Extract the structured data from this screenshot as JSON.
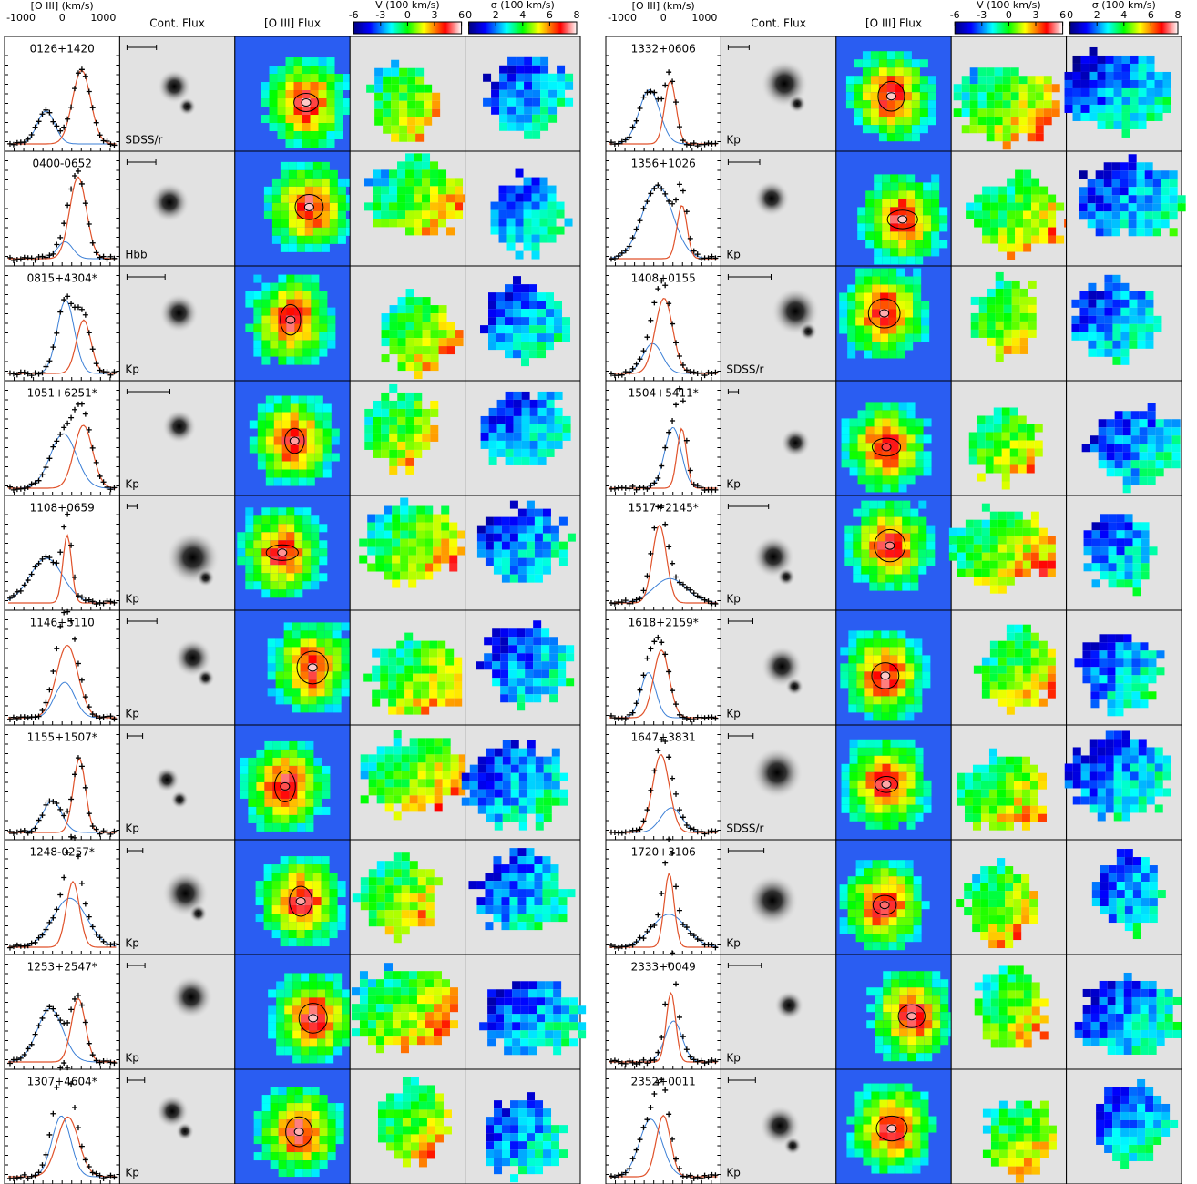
{
  "header": {
    "spectrum_axis": {
      "label": "[O III] (km/s)",
      "xlim": [
        -1400,
        1400
      ],
      "ticks": [
        -1000,
        0,
        1000
      ]
    },
    "continuum": "Cont. Flux",
    "oiii_flux": "[O III] Flux",
    "velocity_colorbar": {
      "label": "V (100 km/s)",
      "lim": [
        -6,
        6
      ],
      "ticks": [
        -6,
        -3,
        0,
        3,
        6
      ]
    },
    "sigma_colorbar": {
      "label": "σ (100 km/s)",
      "lim": [
        0,
        8
      ],
      "ticks": [
        0,
        2,
        4,
        6,
        8
      ]
    }
  },
  "panels": [
    {
      "objects": [
        {
          "name": "0126+1420",
          "image_label": "SDSS/r"
        },
        {
          "name": "0400-0652",
          "image_label": "Hbb"
        },
        {
          "name": "0815+4304*",
          "image_label": "Kp"
        },
        {
          "name": "1051+6251*",
          "image_label": "Kp"
        },
        {
          "name": "1108+0659",
          "image_label": "Kp"
        },
        {
          "name": "1146+5110",
          "image_label": "Kp"
        },
        {
          "name": "1155+1507*",
          "image_label": "Kp"
        },
        {
          "name": "1248-0257*",
          "image_label": "Kp"
        },
        {
          "name": "1253+2547*",
          "image_label": "Kp"
        },
        {
          "name": "1307+4604*",
          "image_label": "Kp"
        }
      ]
    },
    {
      "objects": [
        {
          "name": "1332+0606",
          "image_label": "Kp"
        },
        {
          "name": "1356+1026",
          "image_label": "Kp"
        },
        {
          "name": "1408+0155",
          "image_label": "SDSS/r"
        },
        {
          "name": "1504+5411*",
          "image_label": "Kp"
        },
        {
          "name": "1517+2145*",
          "image_label": "Kp"
        },
        {
          "name": "1618+2159*",
          "image_label": "Kp"
        },
        {
          "name": "1647+3831",
          "image_label": "SDSS/r"
        },
        {
          "name": "1720+3106",
          "image_label": "Kp"
        },
        {
          "name": "2333+0049",
          "image_label": "Kp"
        },
        {
          "name": "2352+0011",
          "image_label": "Kp"
        }
      ]
    }
  ]
}
